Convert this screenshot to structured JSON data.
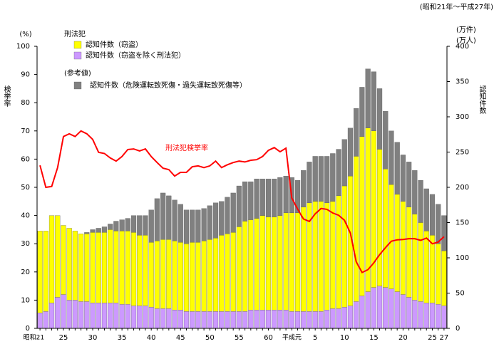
{
  "chart_data": {
    "type": "bar",
    "period_note": "(昭和21年～平成27年)",
    "y_unit": "(%)",
    "ylabel": "検挙率",
    "y2_unit": [
      "(万件)",
      "(万人)"
    ],
    "y2label": "認知件数",
    "legend_headings": [
      "刑法犯",
      "(参考値)"
    ],
    "categories": [
      "昭和21",
      null,
      null,
      null,
      "25",
      null,
      null,
      null,
      null,
      "30",
      null,
      null,
      null,
      null,
      "35",
      null,
      null,
      null,
      null,
      "40",
      null,
      null,
      null,
      null,
      "45",
      null,
      null,
      null,
      null,
      "50",
      null,
      null,
      null,
      null,
      "55",
      null,
      null,
      null,
      null,
      "60",
      null,
      null,
      null,
      "平成元",
      null,
      null,
      null,
      "5",
      null,
      null,
      null,
      null,
      "10",
      null,
      null,
      null,
      null,
      "15",
      null,
      null,
      null,
      null,
      "20",
      null,
      null,
      null,
      null,
      "25",
      null,
      "27"
    ],
    "ylim": [
      0,
      100
    ],
    "yticks": [
      0,
      10,
      20,
      30,
      40,
      50,
      60,
      70,
      80,
      90,
      100
    ],
    "y2lim": [
      0,
      400
    ],
    "y2ticks": [
      0,
      50,
      100,
      150,
      200,
      250,
      300,
      350,
      400
    ],
    "series": [
      {
        "name": "認知件数（窃盗）",
        "color": "#ffff00",
        "axis": "y2",
        "values": [
          116,
          114,
          124,
          116,
          98,
          102,
          98,
          96,
          96,
          100,
          100,
          100,
          104,
          102,
          104,
          104,
          104,
          100,
          100,
          92,
          96,
          98,
          98,
          98,
          96,
          96,
          98,
          98,
          100,
          102,
          104,
          108,
          110,
          112,
          120,
          128,
          128,
          130,
          134,
          132,
          132,
          134,
          138,
          140,
          140,
          148,
          154,
          156,
          156,
          152,
          152,
          160,
          172,
          184,
          206,
          226,
          232,
          222,
          194,
          168,
          148,
          138,
          132,
          128,
          122,
          112,
          102,
          96,
          86,
          78
        ]
      },
      {
        "name": "認知件数（窃盗を除く刑法犯）",
        "color": "#cc99ff",
        "axis": "y2",
        "values": [
          22,
          24,
          36,
          44,
          48,
          40,
          40,
          38,
          38,
          36,
          36,
          36,
          36,
          36,
          34,
          34,
          32,
          32,
          32,
          30,
          28,
          28,
          28,
          26,
          26,
          24,
          24,
          24,
          24,
          24,
          24,
          24,
          24,
          24,
          24,
          24,
          26,
          26,
          26,
          26,
          26,
          26,
          26,
          24,
          24,
          24,
          24,
          24,
          24,
          26,
          28,
          28,
          30,
          32,
          38,
          46,
          52,
          58,
          60,
          58,
          56,
          52,
          48,
          44,
          40,
          38,
          36,
          36,
          34,
          32
        ]
      },
      {
        "name": "認知件数（危険運転致死傷・過失運転致死傷等）",
        "color": "#808080",
        "axis": "y2",
        "values": [
          null,
          null,
          null,
          null,
          null,
          null,
          null,
          null,
          2,
          4,
          6,
          8,
          8,
          14,
          16,
          18,
          24,
          28,
          28,
          46,
          60,
          66,
          62,
          58,
          54,
          48,
          46,
          46,
          46,
          48,
          50,
          48,
          52,
          56,
          58,
          56,
          54,
          56,
          52,
          54,
          54,
          54,
          52,
          50,
          46,
          52,
          58,
          64,
          64,
          66,
          68,
          66,
          66,
          68,
          68,
          70,
          84,
          84,
          86,
          82,
          76,
          74,
          66,
          64,
          62,
          60,
          60,
          58,
          56,
          50
        ]
      },
      {
        "name": "刑法犯検挙率",
        "color": "#ff0000",
        "type": "line",
        "axis": "y",
        "values": [
          57.8,
          50,
          50.3,
          57,
          68,
          69,
          68,
          70,
          69,
          67,
          62.4,
          62,
          60.4,
          59.3,
          60.9,
          63.4,
          63.6,
          62.9,
          63.6,
          60.9,
          58.8,
          56.8,
          56.3,
          54,
          55.3,
          55.3,
          57.3,
          57.6,
          57,
          57.6,
          59.3,
          57,
          58,
          58.8,
          59.3,
          59,
          59.6,
          59.8,
          60.9,
          63.1,
          64.1,
          62.6,
          63.9,
          46.2,
          42.3,
          38.8,
          37.9,
          40.6,
          42.5,
          42.2,
          40.9,
          40.1,
          38.3,
          33.8,
          23.6,
          19.8,
          20.8,
          23.2,
          26.1,
          28.6,
          30.9,
          31.4,
          31.5,
          31.8,
          31.8,
          31.2,
          32,
          30,
          30.6,
          32.5
        ]
      }
    ]
  }
}
